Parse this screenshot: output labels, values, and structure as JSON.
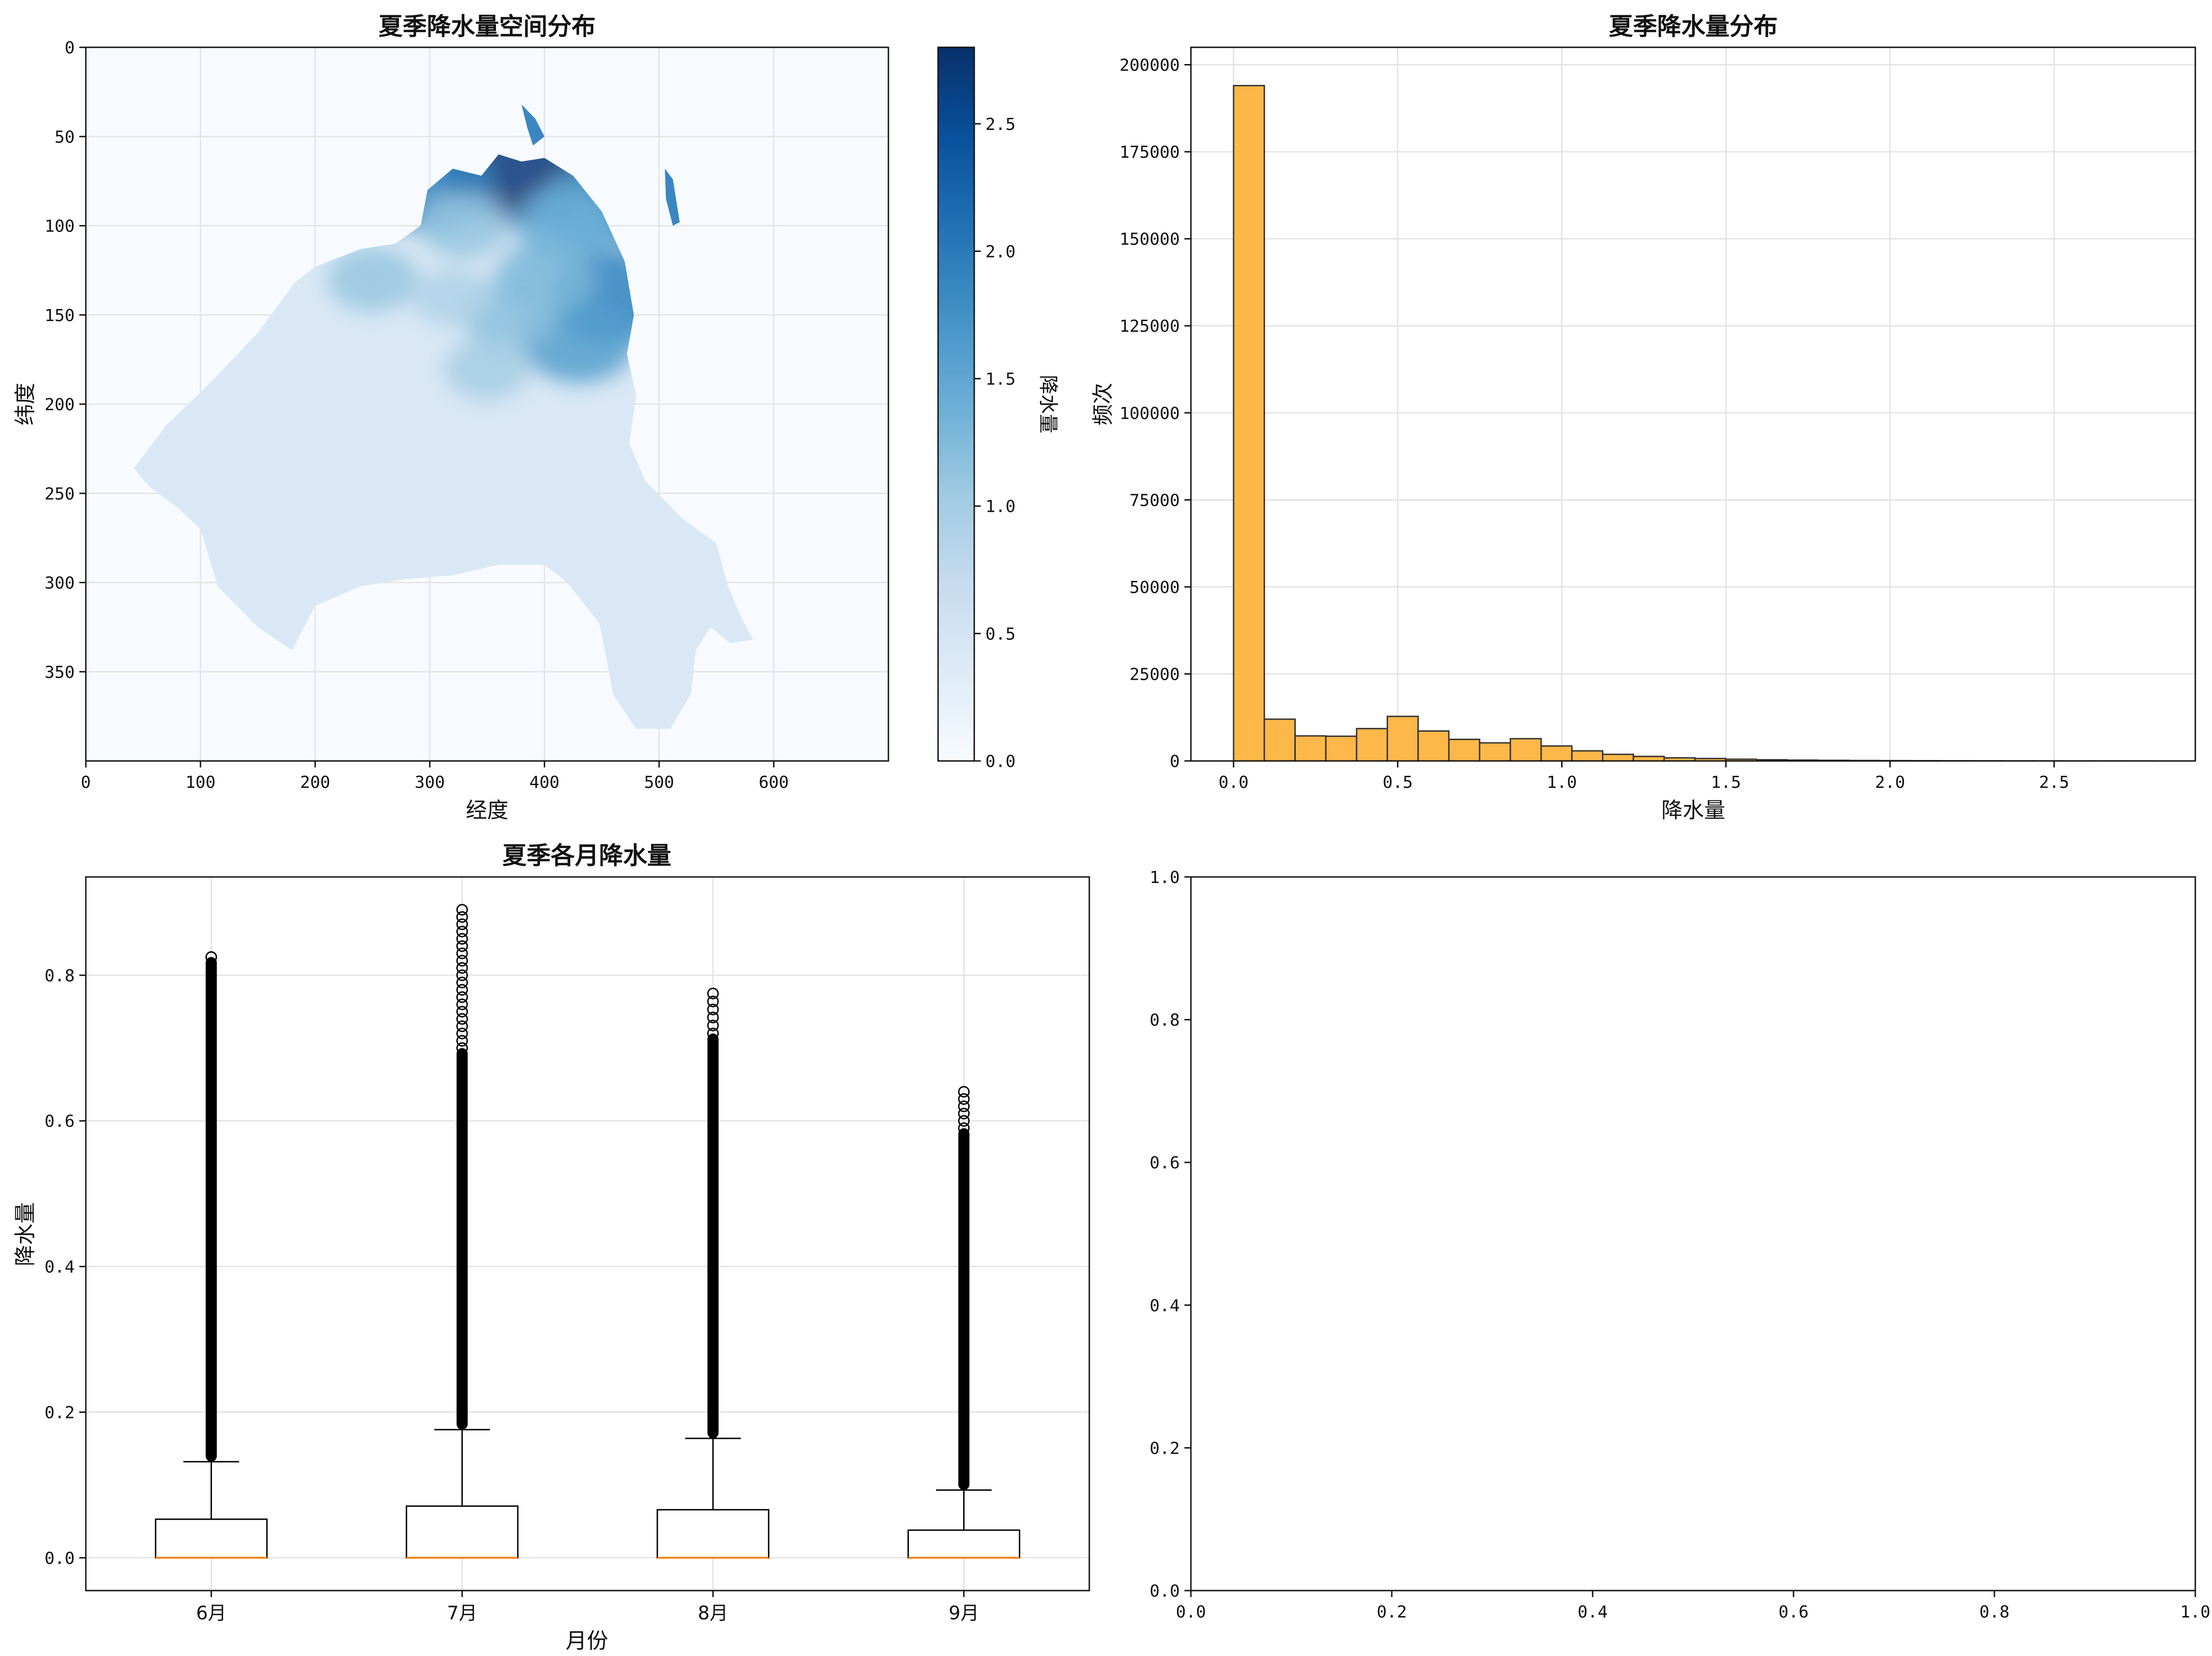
{
  "chart_data": [
    {
      "type": "heatmap",
      "title": "夏季降水量空间分布",
      "xlabel": "经度",
      "ylabel": "纬度",
      "xlim": [
        0,
        700
      ],
      "ylim": [
        400,
        0
      ],
      "xticks": [
        0,
        100,
        200,
        300,
        400,
        500,
        600
      ],
      "yticks": [
        0,
        50,
        100,
        150,
        200,
        250,
        300,
        350
      ],
      "colormap": "Blues",
      "colorbar": {
        "label": "降水量",
        "range": [
          0,
          2.8
        ],
        "ticks": [
          0.0,
          0.5,
          1.0,
          1.5,
          2.0,
          2.5
        ]
      },
      "grid": true,
      "region_outline": [
        [
          200,
          123
        ],
        [
          240,
          113
        ],
        [
          270,
          110
        ],
        [
          292,
          100
        ],
        [
          298,
          80
        ],
        [
          320,
          68
        ],
        [
          345,
          72
        ],
        [
          360,
          60
        ],
        [
          380,
          64
        ],
        [
          400,
          62
        ],
        [
          425,
          72
        ],
        [
          450,
          92
        ],
        [
          470,
          120
        ],
        [
          478,
          150
        ],
        [
          472,
          172
        ],
        [
          480,
          195
        ],
        [
          474,
          222
        ],
        [
          488,
          243
        ],
        [
          520,
          264
        ],
        [
          550,
          278
        ],
        [
          560,
          302
        ],
        [
          572,
          320
        ],
        [
          582,
          332
        ],
        [
          562,
          334
        ],
        [
          545,
          325
        ],
        [
          532,
          338
        ],
        [
          528,
          362
        ],
        [
          510,
          382
        ],
        [
          480,
          382
        ],
        [
          460,
          363
        ],
        [
          448,
          323
        ],
        [
          420,
          300
        ],
        [
          400,
          290
        ],
        [
          360,
          290
        ],
        [
          320,
          296
        ],
        [
          280,
          298
        ],
        [
          240,
          302
        ],
        [
          200,
          313
        ],
        [
          180,
          338
        ],
        [
          150,
          325
        ],
        [
          115,
          302
        ],
        [
          100,
          270
        ],
        [
          80,
          258
        ],
        [
          55,
          246
        ],
        [
          42,
          236
        ],
        [
          70,
          212
        ],
        [
          110,
          187
        ],
        [
          150,
          160
        ],
        [
          182,
          132
        ]
      ],
      "islands": [
        [
          [
            380,
            32
          ],
          [
            392,
            40
          ],
          [
            400,
            50
          ],
          [
            390,
            55
          ],
          [
            385,
            45
          ]
        ],
        [
          [
            505,
            68
          ],
          [
            512,
            74
          ],
          [
            518,
            98
          ],
          [
            512,
            100
          ],
          [
            506,
            85
          ]
        ]
      ],
      "hotspots": [
        {
          "lon": 380,
          "lat": 66,
          "value": 2.7
        },
        {
          "lon": 510,
          "lat": 84,
          "value": 2.6
        },
        {
          "lon": 445,
          "lat": 90,
          "value": 1.6
        },
        {
          "lon": 420,
          "lat": 100,
          "value": 1.4
        },
        {
          "lon": 300,
          "lat": 78,
          "value": 1.9
        },
        {
          "lon": 330,
          "lat": 100,
          "value": 1.1
        },
        {
          "lon": 460,
          "lat": 140,
          "value": 1.9
        },
        {
          "lon": 430,
          "lat": 165,
          "value": 1.6
        },
        {
          "lon": 400,
          "lat": 130,
          "value": 1.3
        },
        {
          "lon": 370,
          "lat": 150,
          "value": 1.2
        },
        {
          "lon": 250,
          "lat": 130,
          "value": 1.1
        },
        {
          "lon": 350,
          "lat": 180,
          "value": 1.0
        },
        {
          "lon": 320,
          "lat": 140,
          "value": 0.9
        }
      ]
    },
    {
      "type": "bar",
      "title": "夏季降水量分布",
      "xlabel": "降水量",
      "ylabel": "频次",
      "xlim": [
        -0.13,
        2.93
      ],
      "ylim": [
        0,
        205000
      ],
      "xticks": [
        0.0,
        0.5,
        1.0,
        1.5,
        2.0,
        2.5
      ],
      "yticks": [
        0,
        25000,
        50000,
        75000,
        100000,
        125000,
        150000,
        175000,
        200000
      ],
      "bin_start": 0.0,
      "bin_width": 0.0937,
      "values": [
        194000,
        12000,
        7200,
        7100,
        9300,
        12800,
        8600,
        6200,
        5200,
        6400,
        4300,
        2900,
        1900,
        1300,
        900,
        700,
        500,
        350,
        250,
        180,
        130,
        90,
        70,
        50,
        40,
        30,
        25,
        20,
        15,
        10
      ],
      "color": "#fdb849",
      "grid": true
    },
    {
      "type": "box",
      "title": "夏季各月降水量",
      "xlabel": "月份",
      "ylabel": "降水量",
      "ylim": [
        -0.045,
        0.935
      ],
      "yticks": [
        0.0,
        0.2,
        0.4,
        0.6,
        0.8
      ],
      "categories": [
        "6月",
        "7月",
        "8月",
        "9月"
      ],
      "boxes": [
        {
          "median": 0.0,
          "q1": 0.0,
          "q3": 0.053,
          "whisker_low": 0.0,
          "whisker_high": 0.132,
          "outlier_max": 0.825,
          "sparse_from": 0.825
        },
        {
          "median": 0.0,
          "q1": 0.0,
          "q3": 0.071,
          "whisker_low": 0.0,
          "whisker_high": 0.176,
          "outlier_max": 0.89,
          "sparse_from": 0.7
        },
        {
          "median": 0.0,
          "q1": 0.0,
          "q3": 0.066,
          "whisker_low": 0.0,
          "whisker_high": 0.164,
          "outlier_max": 0.775,
          "sparse_from": 0.72
        },
        {
          "median": 0.0,
          "q1": 0.0,
          "q3": 0.038,
          "whisker_low": 0.0,
          "whisker_high": 0.093,
          "outlier_max": 0.64,
          "sparse_from": 0.59
        }
      ],
      "median_color": "#ff7f0e",
      "grid": true
    },
    {
      "type": "scatter",
      "title": "",
      "xlabel": "",
      "ylabel": "",
      "xlim": [
        0.0,
        1.0
      ],
      "ylim": [
        0.0,
        1.0
      ],
      "xticks": [
        0.0,
        0.2,
        0.4,
        0.6,
        0.8,
        1.0
      ],
      "yticks": [
        0.0,
        0.2,
        0.4,
        0.6,
        0.8,
        1.0
      ],
      "values": [],
      "grid": false
    }
  ]
}
